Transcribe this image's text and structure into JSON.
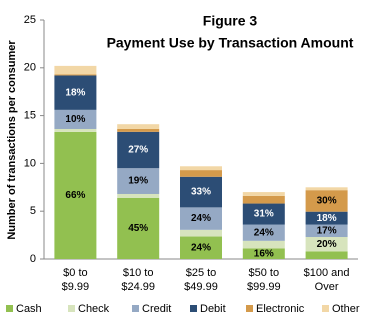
{
  "chart_data": {
    "type": "stacked_bar",
    "title": [
      "Figure 3",
      "Payment Use by Transaction Amount"
    ],
    "y_label": "Number of transactions per consumer",
    "categories": [
      [
        "$0 to",
        "$9.99"
      ],
      [
        "$10 to",
        "$24.99"
      ],
      [
        "$25 to",
        "$49.99"
      ],
      [
        "$50 to",
        "$99.99"
      ],
      [
        "$100 and",
        "Over"
      ]
    ],
    "series": [
      {
        "name": "Cash",
        "color": "#92c050",
        "values": [
          13.3,
          6.4,
          2.35,
          1.1,
          0.8
        ],
        "labels": [
          "66%",
          "45%",
          "24%",
          "16%",
          null
        ]
      },
      {
        "name": "Check",
        "color": "#d7e4bd",
        "values": [
          0.3,
          0.4,
          0.7,
          0.8,
          1.5
        ],
        "labels": [
          null,
          null,
          null,
          null,
          "20%"
        ]
      },
      {
        "name": "Credit",
        "color": "#95a9c4",
        "values": [
          2.0,
          2.7,
          2.35,
          1.7,
          1.3
        ],
        "labels": [
          "10%",
          "19%",
          "24%",
          "24%",
          "17%"
        ]
      },
      {
        "name": "Debit",
        "color": "#2c4d75",
        "values": [
          3.6,
          3.8,
          3.2,
          2.2,
          1.35
        ],
        "labels": [
          "18%",
          "27%",
          "33%",
          "31%",
          "18%"
        ]
      },
      {
        "name": "Electronic",
        "color": "#d49a4b",
        "values": [
          0.1,
          0.3,
          0.7,
          0.8,
          2.25
        ],
        "labels": [
          null,
          null,
          null,
          null,
          "30%"
        ]
      },
      {
        "name": "Other",
        "color": "#f2d7a6",
        "values": [
          0.9,
          0.5,
          0.4,
          0.4,
          0.3
        ],
        "labels": [
          null,
          null,
          null,
          null,
          null
        ]
      }
    ],
    "ylim": [
      0,
      25
    ],
    "yticks": [
      0,
      5,
      10,
      15,
      20,
      25
    ],
    "grid": false
  }
}
